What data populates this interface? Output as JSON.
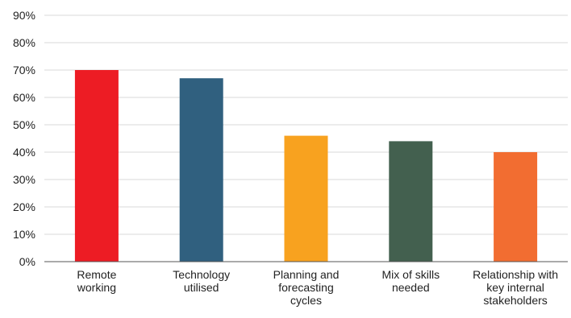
{
  "chart_data": {
    "type": "bar",
    "categories": [
      [
        "Remote",
        "working"
      ],
      [
        "Technology",
        "utilised"
      ],
      [
        "Planning and",
        "forecasting",
        "cycles"
      ],
      [
        "Mix of skills",
        "needed"
      ],
      [
        "Relationship with",
        "key internal",
        "stakeholders"
      ]
    ],
    "values": [
      70,
      67,
      46,
      44,
      40
    ],
    "bar_colors": [
      "#ed1c24",
      "#30607f",
      "#f8a21f",
      "#43604f",
      "#f26d31"
    ],
    "ylim": [
      0,
      90
    ],
    "yticks": [
      0,
      10,
      20,
      30,
      40,
      50,
      60,
      70,
      80,
      90
    ],
    "ytick_labels": [
      "0%",
      "10%",
      "20%",
      "30%",
      "40%",
      "50%",
      "60%",
      "70%",
      "80%",
      "90%"
    ],
    "grid": true,
    "grid_color": "#d9d9d9",
    "title": "",
    "xlabel": "",
    "ylabel": ""
  }
}
